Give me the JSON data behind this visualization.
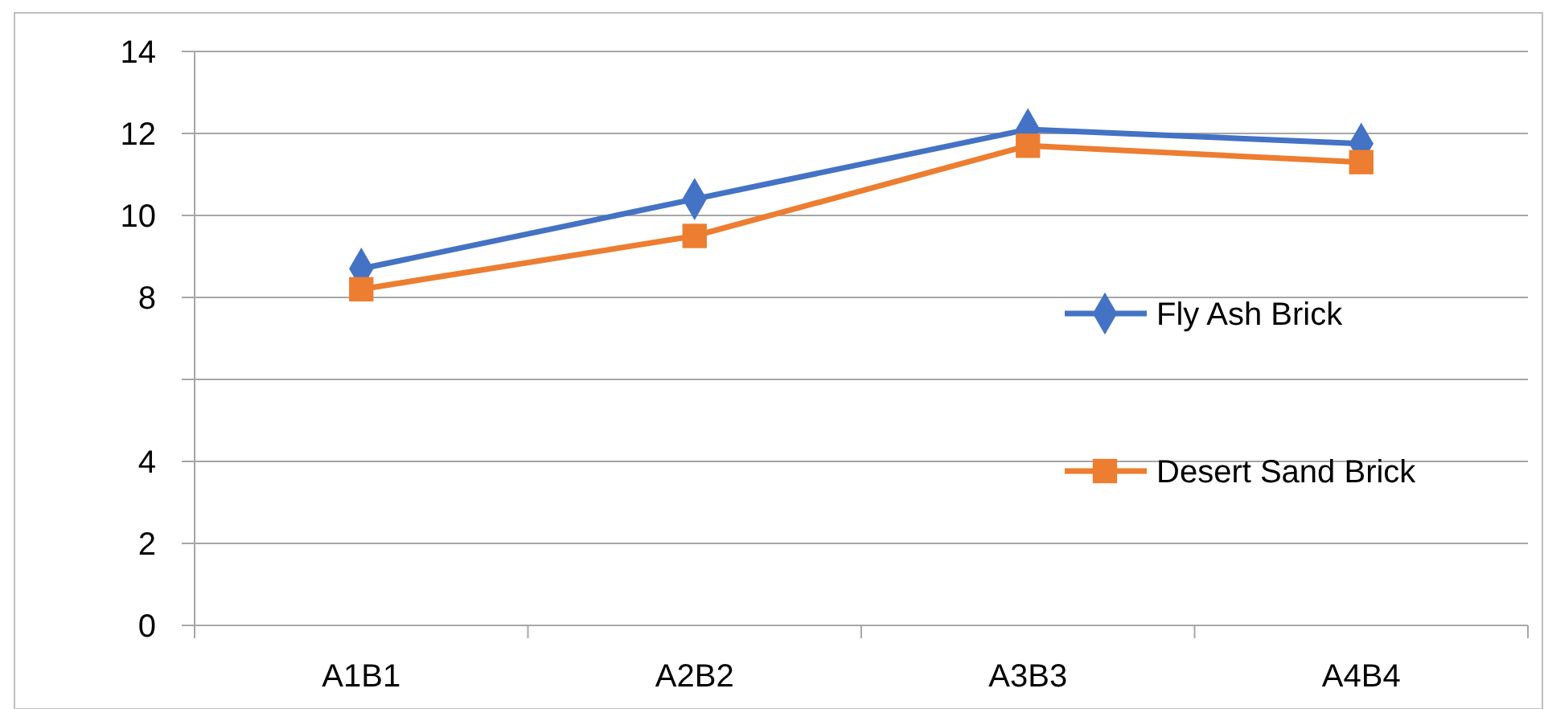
{
  "chart_data": {
    "type": "line",
    "categories": [
      "A1B1",
      "A2B2",
      "A3B3",
      "A4B4"
    ],
    "series": [
      {
        "name": "Fly Ash Brick",
        "color": "#4472c4",
        "marker": "diamond",
        "values": [
          8.7,
          10.4,
          12.1,
          11.75
        ]
      },
      {
        "name": "Desert Sand Brick",
        "color": "#ed7d31",
        "marker": "square",
        "values": [
          8.2,
          9.5,
          11.7,
          11.3
        ]
      }
    ],
    "ylim": [
      0,
      14
    ],
    "yticks": [
      0,
      2,
      4,
      {
        "value": 6,
        "label": null
      },
      8,
      10,
      12,
      14
    ],
    "grid": "y",
    "legend": "right"
  }
}
